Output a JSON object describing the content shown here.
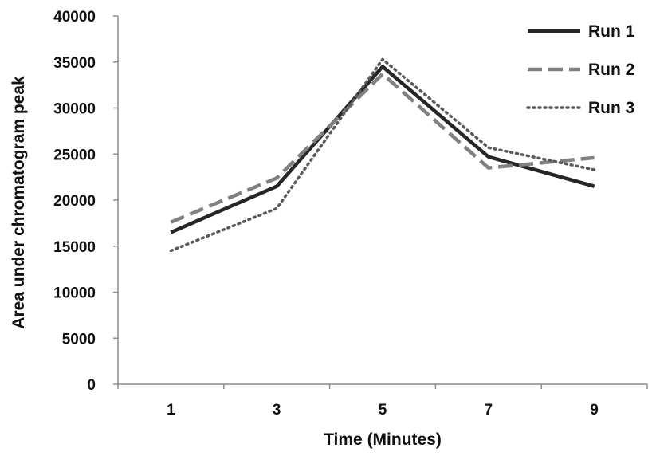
{
  "chart_data": {
    "type": "line",
    "title": "",
    "xlabel": "Time (Minutes)",
    "ylabel": "Area under chromatogram peak",
    "categories": [
      "1",
      "3",
      "5",
      "7",
      "9"
    ],
    "ylim": [
      0,
      40000
    ],
    "yticks": [
      "0",
      "5000",
      "10000",
      "15000",
      "20000",
      "25000",
      "30000",
      "35000",
      "40000"
    ],
    "grid": false,
    "legend_position": "top-right",
    "series": [
      {
        "name": "Run 1",
        "values": [
          16500,
          21500,
          34500,
          24700,
          21500
        ],
        "style": "solid",
        "color": "#262626"
      },
      {
        "name": "Run 2",
        "values": [
          17600,
          22400,
          33700,
          23500,
          24600
        ],
        "style": "dashed",
        "color": "#808080"
      },
      {
        "name": "Run 3",
        "values": [
          14500,
          19100,
          35300,
          25700,
          23300
        ],
        "style": "dotted",
        "color": "#5a5a5a"
      }
    ]
  }
}
